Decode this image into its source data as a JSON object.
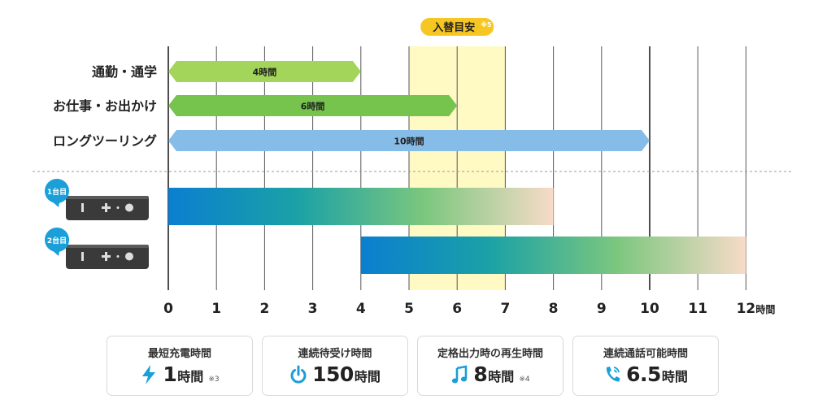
{
  "chart_data": {
    "type": "bar",
    "x_axis": {
      "min": 0,
      "max": 12,
      "ticks": [
        "0",
        "1",
        "2",
        "3",
        "4",
        "5",
        "6",
        "7",
        "8",
        "9",
        "10",
        "11",
        "12"
      ],
      "unit": "時間",
      "grid": true
    },
    "highlight_band": {
      "from": 5,
      "to": 7,
      "label": "入替目安",
      "note": "※5",
      "color": "#fff9c4"
    },
    "usage_bars": [
      {
        "label": "通勤・通学",
        "value_label": "4時間",
        "start": 0,
        "end": 4,
        "color": "#a3d55a"
      },
      {
        "label": "お仕事・お出かけ",
        "value_label": "6時間",
        "start": 0,
        "end": 6,
        "color": "#76c34e"
      },
      {
        "label": "ロングツーリング",
        "value_label": "10時間",
        "start": 0,
        "end": 10,
        "color": "#86bde8"
      }
    ],
    "device_bars": [
      {
        "badge": "1台目",
        "start": 0,
        "end": 8
      },
      {
        "badge": "2台目",
        "start": 4,
        "end": 12
      }
    ],
    "device_gradient": [
      "#0a7fd0",
      "#1ba1a6",
      "#7cc77e",
      "#f7dbc8"
    ]
  },
  "specs": [
    {
      "label": "最短充電時間",
      "icon": "lightning-icon",
      "value": "1",
      "unit": "時間",
      "note": "※3",
      "icon_color": "#1a9fd9"
    },
    {
      "label": "連続待受け時間",
      "icon": "power-icon",
      "value": "150",
      "unit": "時間",
      "note": "",
      "icon_color": "#1a9fd9"
    },
    {
      "label": "定格出力時の再生時間",
      "icon": "music-note-icon",
      "value": "8",
      "unit": "時間",
      "note": "※4",
      "icon_color": "#1a9fd9"
    },
    {
      "label": "連続通話可能時間",
      "icon": "phone-icon",
      "value": "6.5",
      "unit": "時間",
      "note": "",
      "icon_color": "#1a9fd9"
    }
  ]
}
